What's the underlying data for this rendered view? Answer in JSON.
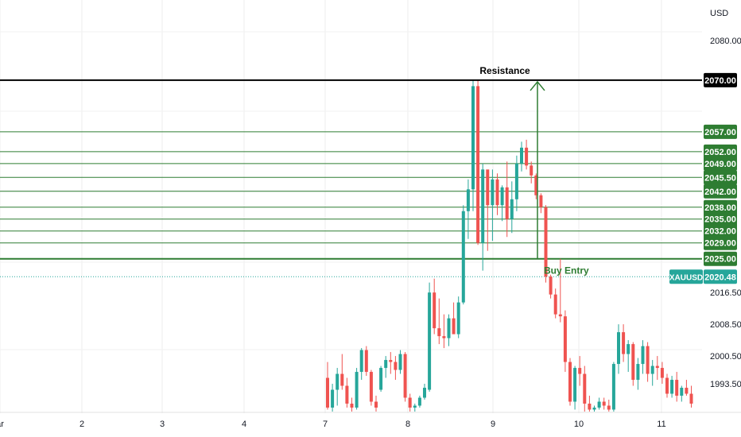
{
  "chart_data": {
    "type": "candlestick",
    "symbol": "XAUUSD",
    "currency": "USD",
    "x_ticks": [
      "ar",
      "2",
      "3",
      "4",
      "7",
      "8",
      "9",
      "10",
      "11"
    ],
    "y_ticks": [
      1993.5,
      2000.5,
      2008.5,
      2016.5,
      2080.0
    ],
    "ylim": [
      1986.5,
      2084.0
    ],
    "current_price": 2020.48,
    "current_price_label": "2020.48",
    "symbol_label": "XAUUSD",
    "resistance": {
      "price": 2070.0,
      "label": "Resistance"
    },
    "buy_entry": {
      "price": 2025.0,
      "label": "Buy Entry"
    },
    "levels": [
      2057.0,
      2052.0,
      2049.0,
      2045.5,
      2042.0,
      2038.0,
      2035.0,
      2032.0,
      2029.0,
      2025.0
    ],
    "up_color": "#26a69a",
    "down_color": "#ef5350",
    "level_color": "#2e7d32",
    "resistance_color": "#000000",
    "candles": [
      [
        1995.0,
        1999.0,
        1987.0,
        1987.5
      ],
      [
        1987.5,
        1993.5,
        1986.5,
        1992.0
      ],
      [
        1992.0,
        1997.5,
        1988.0,
        1996.0
      ],
      [
        1996.0,
        2001.0,
        1992.0,
        1993.0
      ],
      [
        1993.0,
        1995.0,
        1987.5,
        1988.5
      ],
      [
        1988.5,
        1990.0,
        1986.5,
        1987.5
      ],
      [
        1987.5,
        1997.5,
        1987.0,
        1996.5
      ],
      [
        1996.5,
        2002.5,
        1994.5,
        2002.0
      ],
      [
        2002.0,
        2003.0,
        1995.5,
        1996.5
      ],
      [
        1996.5,
        1997.0,
        1988.0,
        1989.0
      ],
      [
        1989.0,
        1990.5,
        1986.5,
        1987.5
      ],
      [
        1992.0,
        1998.0,
        1991.5,
        1997.5
      ],
      [
        1997.5,
        2000.5,
        1995.0,
        1999.5
      ],
      [
        1999.5,
        2001.5,
        1996.0,
        1999.0
      ],
      [
        1999.0,
        2000.5,
        1994.5,
        1997.0
      ],
      [
        1997.0,
        2002.0,
        1996.0,
        2001.0
      ],
      [
        2001.0,
        2001.5,
        1989.0,
        1990.0
      ],
      [
        1990.0,
        1991.0,
        1986.5,
        1987.5
      ],
      [
        1987.5,
        1988.5,
        1986.5,
        1988.0
      ],
      [
        1988.0,
        1990.5,
        1987.5,
        1990.0
      ],
      [
        1990.0,
        1993.5,
        1989.5,
        1992.5
      ],
      [
        1992.0,
        2019.0,
        1991.5,
        2016.5
      ],
      [
        2016.5,
        2020.0,
        2006.0,
        2007.5
      ],
      [
        2007.5,
        2015.0,
        2003.5,
        2005.5
      ],
      [
        2005.5,
        2011.0,
        2002.5,
        2005.0
      ],
      [
        2005.0,
        2011.0,
        2003.0,
        2010.0
      ],
      [
        2010.0,
        2014.0,
        2006.5,
        2006.0
      ],
      [
        2006.0,
        2015.5,
        2005.0,
        2014.0
      ],
      [
        2014.0,
        2038.5,
        2013.5,
        2037.0
      ],
      [
        2037.0,
        2045.0,
        2030.0,
        2042.5
      ],
      [
        2042.5,
        2070.0,
        2037.0,
        2068.5
      ],
      [
        2068.5,
        2070.0,
        2028.5,
        2029.0
      ],
      [
        2029.0,
        2049.0,
        2022.0,
        2047.5
      ],
      [
        2047.5,
        2047.0,
        2027.0,
        2038.5
      ],
      [
        2038.5,
        2047.5,
        2029.5,
        2045.0
      ],
      [
        2045.0,
        2046.5,
        2036.0,
        2038.5
      ],
      [
        2038.5,
        2043.5,
        2034.5,
        2043.0
      ],
      [
        2043.0,
        2049.5,
        2030.5,
        2035.0
      ],
      [
        2035.0,
        2044.5,
        2031.5,
        2040.0
      ],
      [
        2040.0,
        2051.0,
        2037.0,
        2049.0
      ],
      [
        2049.0,
        2054.5,
        2047.0,
        2053.0
      ],
      [
        2053.0,
        2055.0,
        2047.5,
        2048.5
      ],
      [
        2048.5,
        2049.5,
        2044.0,
        2046.0
      ],
      [
        2046.0,
        2046.5,
        2040.0,
        2041.0
      ],
      [
        2041.0,
        2041.5,
        2036.5,
        2038.0
      ],
      [
        2038.0,
        2038.5,
        2019.0,
        2020.5
      ],
      [
        2020.5,
        2021.0,
        2015.0,
        2016.0
      ],
      [
        2016.0,
        2017.5,
        2010.0,
        2011.0
      ],
      [
        2011.0,
        2025.0,
        2009.0,
        2010.5
      ],
      [
        2010.5,
        2012.0,
        1996.5,
        1999.0
      ],
      [
        1999.0,
        2000.0,
        1988.0,
        1989.0
      ],
      [
        1989.0,
        1998.0,
        1987.0,
        1997.5
      ],
      [
        1997.5,
        2000.5,
        1993.0,
        1996.0
      ],
      [
        1996.0,
        1998.0,
        1986.5,
        1988.5
      ],
      [
        1988.5,
        1990.5,
        1986.5,
        1987.0
      ],
      [
        1987.0,
        1988.0,
        1986.5,
        1987.5
      ],
      [
        1987.5,
        1990.0,
        1987.0,
        1989.0
      ],
      [
        1989.0,
        1990.0,
        1987.0,
        1988.0
      ],
      [
        1988.0,
        1989.5,
        1986.5,
        1987.0
      ],
      [
        1987.0,
        1999.0,
        1986.5,
        1998.5
      ],
      [
        1998.5,
        2008.5,
        1996.0,
        2006.5
      ],
      [
        2006.5,
        2008.5,
        1999.0,
        2001.0
      ],
      [
        2001.0,
        2004.5,
        1996.5,
        2003.5
      ],
      [
        2003.5,
        2004.0,
        1993.0,
        1994.5
      ],
      [
        1994.5,
        2000.0,
        1992.0,
        1998.5
      ],
      [
        1998.5,
        2004.5,
        1996.0,
        2003.0
      ],
      [
        2003.0,
        2004.0,
        1994.0,
        1996.0
      ],
      [
        1996.0,
        1999.5,
        1993.0,
        1998.0
      ],
      [
        1998.0,
        2000.5,
        1994.5,
        1997.5
      ],
      [
        1997.5,
        1999.0,
        1993.5,
        1995.0
      ],
      [
        1995.0,
        1996.0,
        1990.0,
        1991.0
      ],
      [
        1991.0,
        1995.5,
        1990.0,
        1994.5
      ],
      [
        1994.5,
        1996.5,
        1989.0,
        1990.5
      ],
      [
        1990.5,
        1993.0,
        1989.0,
        1992.5
      ],
      [
        1992.5,
        1994.5,
        1990.5,
        1991.0
      ],
      [
        1991.0,
        1993.0,
        1987.5,
        1988.5
      ]
    ]
  }
}
